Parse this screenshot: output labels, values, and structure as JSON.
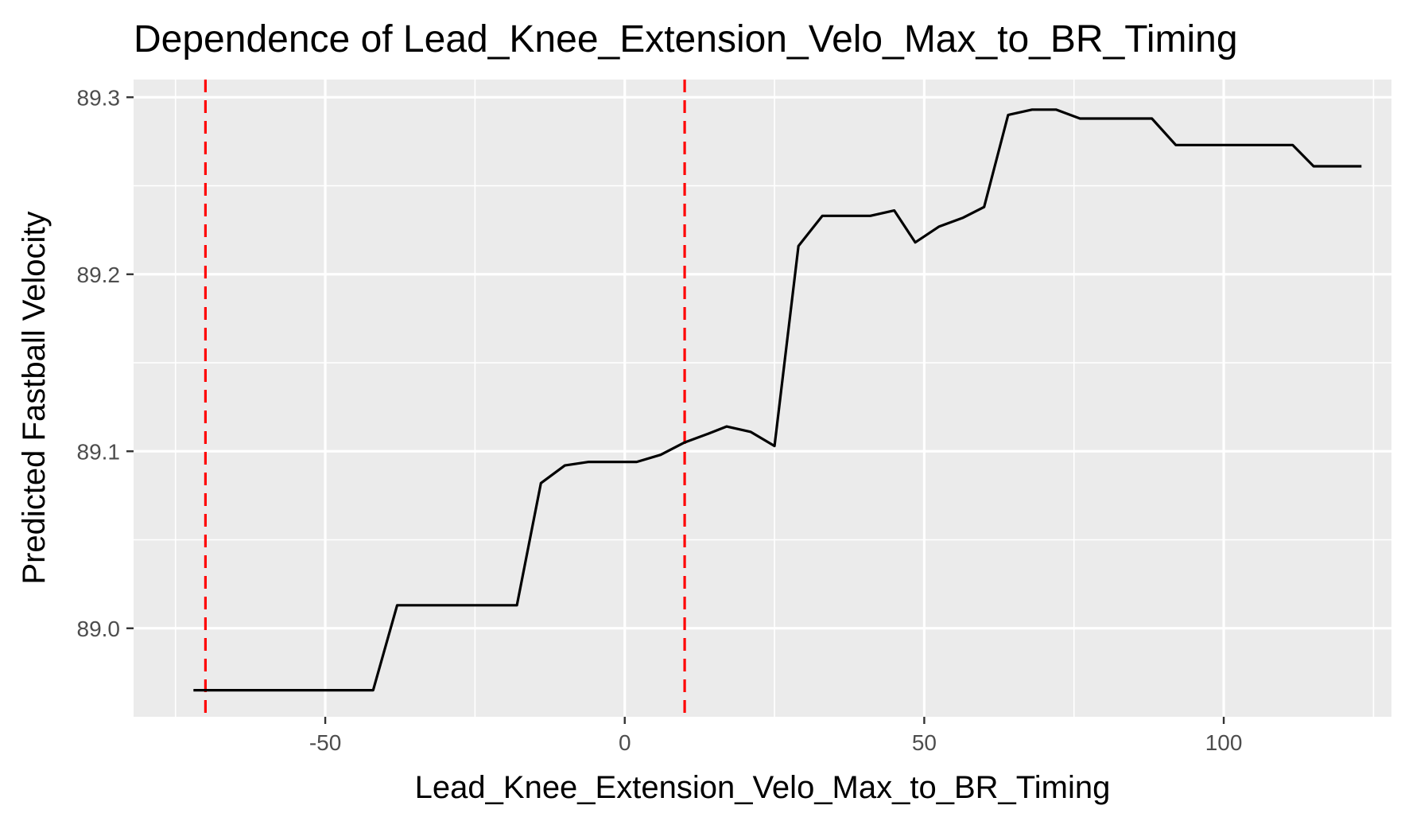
{
  "chart_data": {
    "type": "line",
    "title": "Dependence of Lead_Knee_Extension_Velo_Max_to_BR_Timing",
    "xlabel": "Lead_Knee_Extension_Velo_Max_to_BR_Timing",
    "ylabel": "Predicted Fastball Velocity",
    "xlim": [
      -82,
      128
    ],
    "ylim": [
      88.95,
      89.31
    ],
    "x_ticks": [
      -50,
      0,
      50,
      100
    ],
    "x_tick_labels": [
      "-50",
      "0",
      "50",
      "100"
    ],
    "y_ticks": [
      89.0,
      89.1,
      89.2,
      89.3
    ],
    "y_tick_labels": [
      "89.0",
      "89.1",
      "89.2",
      "89.3"
    ],
    "grid": true,
    "background": "#ebebeb",
    "line_color": "#000000",
    "vline_color": "#ff0000",
    "vlines": [
      -70,
      10
    ],
    "series": [
      {
        "x": [
          -72,
          -42,
          -38,
          -18,
          -14,
          -10,
          -6,
          -2,
          2,
          6,
          10,
          14,
          17,
          21,
          25,
          29,
          33,
          37,
          41,
          45,
          48.5,
          52.5,
          56.5,
          60,
          64,
          68,
          72,
          76,
          80,
          84,
          88,
          92,
          96,
          100,
          104,
          108,
          111.5,
          115,
          119,
          123
        ],
        "y": [
          88.965,
          88.965,
          89.013,
          89.013,
          89.082,
          89.092,
          89.094,
          89.094,
          89.094,
          89.098,
          89.105,
          89.11,
          89.114,
          89.111,
          89.103,
          89.216,
          89.233,
          89.233,
          89.233,
          89.236,
          89.218,
          89.227,
          89.232,
          89.238,
          89.29,
          89.293,
          89.293,
          89.288,
          89.288,
          89.288,
          89.288,
          89.273,
          89.273,
          89.273,
          89.273,
          89.273,
          89.273,
          89.261,
          89.261,
          89.261
        ]
      }
    ]
  }
}
